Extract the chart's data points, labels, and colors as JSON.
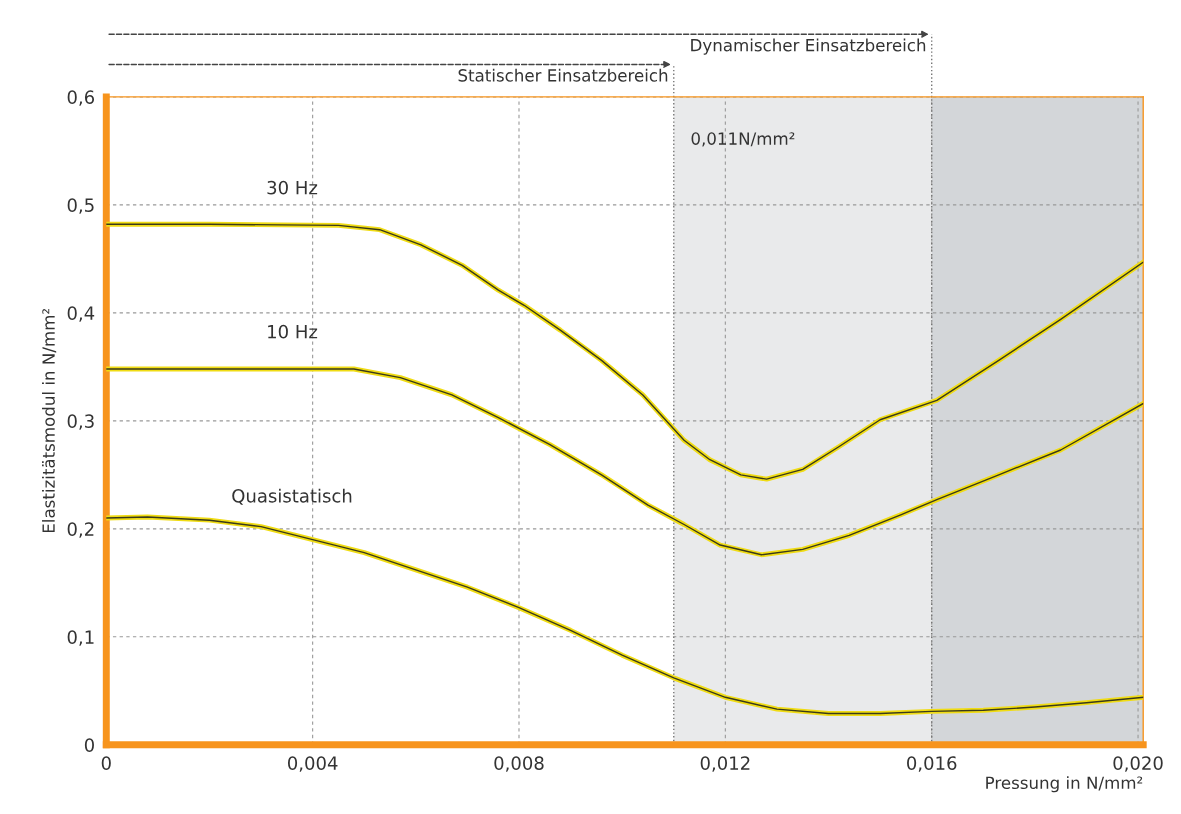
{
  "chart_data": {
    "type": "line",
    "xlabel": "Pressung in N/mm²",
    "ylabel": "Elastizitätsmodul in N/mm²",
    "xlim": [
      0,
      0.0201
    ],
    "ylim": [
      0,
      0.6
    ],
    "xticks": [
      0,
      {
        "value": 0.004,
        "label": "0,004"
      },
      {
        "value": 0.008,
        "label": "0,008"
      },
      {
        "value": 0.012,
        "label": "0,012"
      },
      {
        "value": 0.016,
        "label": "0,016"
      },
      {
        "value": 0.02,
        "label": "0,020"
      }
    ],
    "yticks": [
      0,
      {
        "value": 0.1,
        "label": "0,1"
      },
      {
        "value": 0.2,
        "label": "0,2"
      },
      {
        "value": 0.3,
        "label": "0,3"
      },
      {
        "value": 0.4,
        "label": "0,4"
      },
      {
        "value": 0.5,
        "label": "0,5"
      },
      {
        "value": 0.6,
        "label": "0,6"
      }
    ],
    "grid": true,
    "line_style": "solid",
    "marker": "none",
    "series": [
      {
        "name": "30 Hz",
        "color": "#f0dc14",
        "x": [
          0,
          0.002,
          0.0045,
          0.0053,
          0.0061,
          0.0069,
          0.0076,
          0.0081,
          0.0088,
          0.0096,
          0.0104,
          0.0112,
          0.0117,
          0.0123,
          0.0128,
          0.0135,
          0.0142,
          0.015,
          0.0161,
          0.0173,
          0.0185,
          0.0201
        ],
        "values": [
          0.482,
          0.482,
          0.481,
          0.477,
          0.463,
          0.444,
          0.421,
          0.407,
          0.384,
          0.356,
          0.324,
          0.282,
          0.264,
          0.25,
          0.246,
          0.255,
          0.276,
          0.301,
          0.319,
          0.356,
          0.394,
          0.447
        ]
      },
      {
        "name": "10 Hz",
        "color": "#f0dc14",
        "x": [
          0,
          0.002,
          0.0048,
          0.0057,
          0.0067,
          0.0076,
          0.0086,
          0.0096,
          0.0105,
          0.0112,
          0.0119,
          0.0127,
          0.0135,
          0.0144,
          0.0154,
          0.0161,
          0.0173,
          0.0185,
          0.0201
        ],
        "values": [
          0.348,
          0.348,
          0.348,
          0.34,
          0.324,
          0.303,
          0.278,
          0.25,
          0.222,
          0.204,
          0.185,
          0.176,
          0.181,
          0.194,
          0.213,
          0.227,
          0.25,
          0.273,
          0.316
        ]
      },
      {
        "name": "Quasistatisch",
        "color": "#f0dc14",
        "x": [
          0,
          0.0008,
          0.002,
          0.003,
          0.004,
          0.005,
          0.006,
          0.007,
          0.008,
          0.009,
          0.01,
          0.011,
          0.012,
          0.013,
          0.014,
          0.015,
          0.016,
          0.017,
          0.018,
          0.019,
          0.0201
        ],
        "values": [
          0.21,
          0.211,
          0.208,
          0.202,
          0.19,
          0.178,
          0.162,
          0.146,
          0.127,
          0.106,
          0.083,
          0.062,
          0.044,
          0.033,
          0.029,
          0.029,
          0.031,
          0.032,
          0.035,
          0.039,
          0.044
        ]
      }
    ],
    "bands": [
      {
        "axis": "x",
        "from": 0.011,
        "to": 0.016,
        "color": "#e9eaeb"
      },
      {
        "axis": "x",
        "from": 0.016,
        "to": 0.0201,
        "color": "#d3d6d9"
      }
    ],
    "ref_lines": [
      {
        "axis": "x",
        "value": 0.011,
        "label": "Statischer Einsatzbereich",
        "line_style": "dotted",
        "color": "#777777"
      },
      {
        "axis": "x",
        "value": 0.016,
        "label": "Dynamischer Einsatzbereich",
        "line_style": "dotted",
        "color": "#777777"
      }
    ],
    "annotations": [
      {
        "text": "0,011N/mm²",
        "x": 0.011,
        "y": 0.56
      }
    ]
  }
}
